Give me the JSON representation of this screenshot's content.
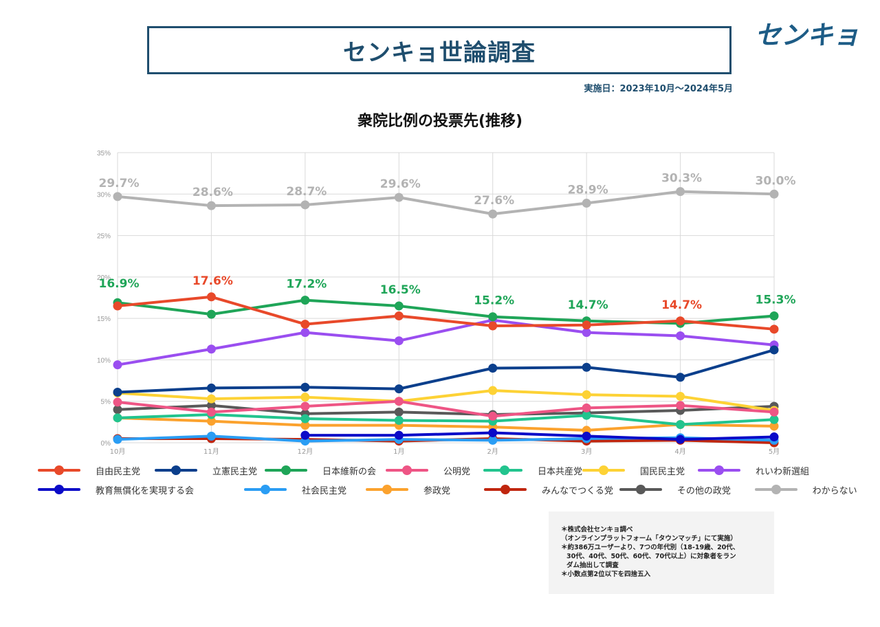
{
  "header": {
    "title": "センキョ世論調査",
    "logo_text": "センキョ",
    "survey_date": "実施日：2023年10月～2024年5月"
  },
  "chart_data": {
    "type": "line",
    "title": "衆院比例の投票先(推移)",
    "xlabel": "",
    "ylabel": "",
    "x": [
      "10月",
      "11月",
      "12月",
      "1月",
      "2月",
      "3月",
      "4月",
      "5月"
    ],
    "ylim": [
      0,
      35
    ],
    "yticks": [
      "0%",
      "5%",
      "10%",
      "15%",
      "20%",
      "25%",
      "30%",
      "35%"
    ],
    "ytick_values": [
      0,
      5,
      10,
      15,
      20,
      25,
      30,
      35
    ],
    "grid": true,
    "legend_position": "bottom",
    "series": [
      {
        "name": "自由民主党",
        "color": "#e8492a",
        "values": [
          16.5,
          17.6,
          14.3,
          15.3,
          14.1,
          14.2,
          14.7,
          13.7
        ]
      },
      {
        "name": "立憲民主党",
        "color": "#0b3f8c",
        "values": [
          6.1,
          6.6,
          6.7,
          6.5,
          9.0,
          9.1,
          7.9,
          11.2
        ]
      },
      {
        "name": "日本維新の会",
        "color": "#1fa558",
        "values": [
          16.9,
          15.5,
          17.2,
          16.5,
          15.2,
          14.7,
          14.4,
          15.3
        ]
      },
      {
        "name": "公明党",
        "color": "#ee5585",
        "values": [
          4.9,
          3.7,
          4.4,
          5.0,
          3.2,
          4.2,
          4.5,
          3.7
        ]
      },
      {
        "name": "日本共産党",
        "color": "#22c48e",
        "values": [
          3.0,
          3.4,
          2.9,
          2.7,
          2.6,
          3.3,
          2.2,
          2.8
        ]
      },
      {
        "name": "国民民主党",
        "color": "#fdd235",
        "values": [
          6.0,
          5.3,
          5.5,
          5.0,
          6.3,
          5.8,
          5.6,
          3.9
        ]
      },
      {
        "name": "れいわ新選組",
        "color": "#9a4ef0",
        "values": [
          9.4,
          11.3,
          13.3,
          12.3,
          14.8,
          13.3,
          12.9,
          11.8
        ]
      },
      {
        "name": "教育無償化を実現する会",
        "color": "#0a0ac8",
        "values": [
          null,
          null,
          0.9,
          0.9,
          1.2,
          0.8,
          0.4,
          0.7
        ]
      },
      {
        "name": "社会民主党",
        "color": "#2a9df4",
        "values": [
          0.4,
          0.8,
          0.2,
          0.4,
          0.3,
          0.5,
          0.6,
          0.3
        ]
      },
      {
        "name": "参政党",
        "color": "#fba22e",
        "values": [
          3.0,
          2.6,
          2.1,
          2.1,
          1.9,
          1.5,
          2.2,
          2.0
        ]
      },
      {
        "name": "みんなでつくる党",
        "color": "#c0260e",
        "values": [
          0.5,
          0.5,
          0.4,
          0.2,
          0.5,
          0.2,
          0.3,
          0.0
        ]
      },
      {
        "name": "その他の政党",
        "color": "#595959",
        "values": [
          4.0,
          4.5,
          3.5,
          3.7,
          3.4,
          3.6,
          3.9,
          4.4
        ]
      },
      {
        "name": "わからない",
        "color": "#b3b3b3",
        "values": [
          29.7,
          28.6,
          28.7,
          29.6,
          27.6,
          28.9,
          30.3,
          30.0
        ]
      }
    ],
    "annotations": [
      {
        "series": "わからない",
        "labels": [
          "29.7%",
          "28.6%",
          "28.7%",
          "29.6%",
          "27.6%",
          "28.9%",
          "30.3%",
          "30.0%"
        ],
        "color": "#b3b3b3"
      },
      {
        "series_per_point": [
          "日本維新の会",
          "自由民主党",
          "日本維新の会",
          "日本維新の会",
          "日本維新の会",
          "日本維新の会",
          "自由民主党",
          "日本維新の会"
        ],
        "labels": [
          "16.9%",
          "17.6%",
          "17.2%",
          "16.5%",
          "15.2%",
          "14.7%",
          "14.7%",
          "15.3%"
        ],
        "colors": [
          "#1fa558",
          "#e8492a",
          "#1fa558",
          "#1fa558",
          "#1fa558",
          "#1fa558",
          "#e8492a",
          "#1fa558"
        ]
      }
    ]
  },
  "legend": {
    "rows": [
      [
        "自由民主党",
        "立憲民主党",
        "日本維新の会",
        "公明党",
        "日本共産党",
        "国民民主党",
        "れいわ新選組"
      ],
      [
        "教育無償化を実現する会",
        "社会民主党",
        "参政党",
        "みんなでつくる党",
        "その他の政党",
        "わからない"
      ]
    ]
  },
  "note": {
    "lines": [
      "＊株式会社センキョ調べ",
      "（オンラインプラットフォーム「タウンマッチ」にて実施）",
      "＊約386万ユーザーより、7つの年代別（18-19歳、20代、",
      "30代、40代、50代、60代、70代以上）に対象者をラン",
      "ダム抽出して調査",
      "＊小数点第2位以下を四捨五入"
    ]
  }
}
